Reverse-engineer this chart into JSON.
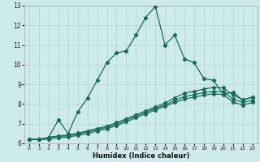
{
  "xlabel": "Humidex (Indice chaleur)",
  "bg_color": "#ceeaea",
  "grid_color": "#b8d8d8",
  "line_color": "#1a6b5a",
  "xlim": [
    -0.5,
    23.5
  ],
  "ylim": [
    6,
    13
  ],
  "x_ticks": [
    0,
    1,
    2,
    3,
    4,
    5,
    6,
    7,
    8,
    9,
    10,
    11,
    12,
    13,
    14,
    15,
    16,
    17,
    18,
    19,
    20,
    21,
    22,
    23
  ],
  "y_ticks": [
    6,
    7,
    8,
    9,
    10,
    11,
    12,
    13
  ],
  "series1_x": [
    0,
    1,
    2,
    3,
    4,
    5,
    6,
    7,
    8,
    9,
    10,
    11,
    12,
    13,
    14,
    15,
    16,
    17,
    18,
    19,
    20,
    21,
    22,
    23
  ],
  "series1_y": [
    6.2,
    6.2,
    6.3,
    7.2,
    6.5,
    7.6,
    8.3,
    9.2,
    10.1,
    10.6,
    10.7,
    11.5,
    12.4,
    12.95,
    11.0,
    11.5,
    10.3,
    10.1,
    9.3,
    9.2,
    8.5,
    8.6,
    8.2,
    8.35
  ],
  "series2_x": [
    0,
    1,
    2,
    3,
    4,
    5,
    6,
    7,
    8,
    9,
    10,
    11,
    12,
    13,
    14,
    15,
    16,
    17,
    18,
    19,
    20,
    21,
    22,
    23
  ],
  "series2_y": [
    6.2,
    6.2,
    6.3,
    6.38,
    6.42,
    6.52,
    6.63,
    6.75,
    6.88,
    7.05,
    7.25,
    7.45,
    7.65,
    7.85,
    8.05,
    8.32,
    8.55,
    8.65,
    8.75,
    8.85,
    8.82,
    8.45,
    8.22,
    8.35
  ],
  "series3_x": [
    0,
    1,
    2,
    3,
    4,
    5,
    6,
    7,
    8,
    9,
    10,
    11,
    12,
    13,
    14,
    15,
    16,
    17,
    18,
    19,
    20,
    21,
    22,
    23
  ],
  "series3_y": [
    6.2,
    6.2,
    6.3,
    6.35,
    6.38,
    6.47,
    6.58,
    6.7,
    6.82,
    6.98,
    7.18,
    7.38,
    7.58,
    7.78,
    7.95,
    8.18,
    8.38,
    8.48,
    8.58,
    8.65,
    8.62,
    8.25,
    8.08,
    8.2
  ],
  "series4_x": [
    0,
    1,
    2,
    3,
    4,
    5,
    6,
    7,
    8,
    9,
    10,
    11,
    12,
    13,
    14,
    15,
    16,
    17,
    18,
    19,
    20,
    21,
    22,
    23
  ],
  "series4_y": [
    6.2,
    6.2,
    6.2,
    6.28,
    6.32,
    6.4,
    6.5,
    6.62,
    6.75,
    6.9,
    7.1,
    7.3,
    7.5,
    7.7,
    7.88,
    8.08,
    8.25,
    8.35,
    8.45,
    8.52,
    8.48,
    8.1,
    7.95,
    8.08
  ]
}
